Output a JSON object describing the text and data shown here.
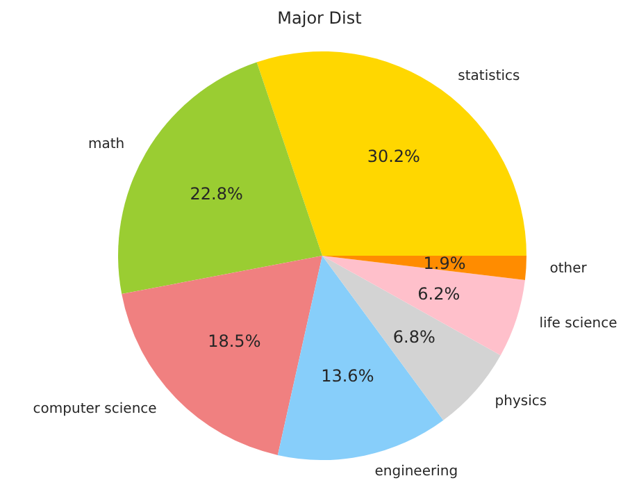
{
  "chart_data": {
    "type": "pie",
    "title": "Major Dist",
    "categories": [
      "statistics",
      "math",
      "computer science",
      "engineering",
      "physics",
      "life science",
      "other"
    ],
    "values": [
      30.2,
      22.8,
      18.5,
      13.6,
      6.8,
      6.2,
      1.9
    ],
    "value_labels": [
      "30.2%",
      "22.8%",
      "18.5%",
      "13.6%",
      "6.8%",
      "6.2%",
      "1.9%"
    ],
    "colors": [
      "#ffd700",
      "#9acd32",
      "#f08080",
      "#87cefa",
      "#d3d3d3",
      "#ffc0cb",
      "#ff8c00"
    ]
  }
}
